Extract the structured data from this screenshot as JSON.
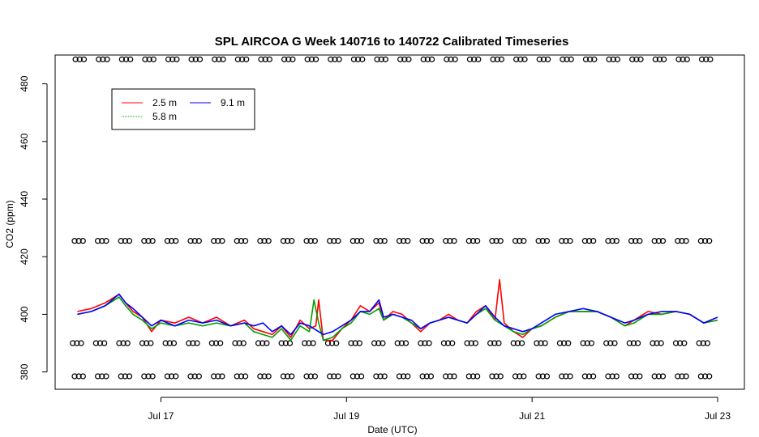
{
  "chart_data": {
    "type": "line",
    "title": "SPL AIRCOA G  Week 140716 to 140722  Calibrated Timeseries",
    "xlabel": "Date (UTC)",
    "ylabel": "CO2 (ppm)",
    "xlim": [
      16.0,
      23.0
    ],
    "ylim": [
      374,
      490
    ],
    "x_ticks": [
      {
        "value": 17,
        "label": "Jul 17"
      },
      {
        "value": 19,
        "label": "Jul 19"
      },
      {
        "value": 21,
        "label": "Jul 21"
      },
      {
        "value": 23,
        "label": "Jul 23"
      }
    ],
    "y_ticks": [
      {
        "value": 380,
        "label": "380"
      },
      {
        "value": 400,
        "label": "400"
      },
      {
        "value": 420,
        "label": "420"
      },
      {
        "value": 440,
        "label": "440"
      },
      {
        "value": 460,
        "label": "460"
      },
      {
        "value": 480,
        "label": "480"
      }
    ],
    "legend": {
      "placement": "top-left",
      "entries": [
        {
          "label": "2.5 m",
          "color": "#ff0000"
        },
        {
          "label": "5.8 m",
          "color": "#00a000"
        },
        {
          "label": "9.1 m",
          "color": "#0000ff"
        }
      ]
    },
    "series": [
      {
        "name": "2.5 m",
        "color": "#ff0000",
        "x": [
          16.1,
          16.25,
          16.4,
          16.55,
          16.62,
          16.7,
          16.8,
          16.9,
          17.0,
          17.15,
          17.3,
          17.45,
          17.6,
          17.75,
          17.9,
          18.0,
          18.1,
          18.2,
          18.3,
          18.4,
          18.5,
          18.6,
          18.67,
          18.7,
          18.75,
          18.85,
          18.95,
          19.05,
          19.15,
          19.25,
          19.35,
          19.4,
          19.5,
          19.6,
          19.7,
          19.8,
          19.9,
          20.0,
          20.1,
          20.2,
          20.3,
          20.4,
          20.5,
          20.6,
          20.65,
          20.7,
          20.8,
          20.9,
          21.0,
          21.1,
          21.25,
          21.4,
          21.55,
          21.7,
          21.85,
          22.0,
          22.1,
          22.25,
          22.4,
          22.55,
          22.7,
          22.85,
          23.0
        ],
        "y": [
          401,
          402,
          404,
          407,
          404,
          401,
          399,
          394,
          398,
          397,
          399,
          397,
          399,
          396,
          398,
          395,
          394,
          393,
          396,
          392,
          398,
          395,
          396,
          405,
          391,
          391,
          395,
          398,
          403,
          401,
          404,
          398,
          401,
          400,
          397,
          394,
          397,
          398,
          400,
          398,
          397,
          401,
          403,
          398,
          412,
          397,
          394,
          392,
          395,
          396,
          399,
          401,
          401,
          401,
          399,
          396,
          398,
          401,
          400,
          401,
          400,
          397,
          398
        ]
      },
      {
        "name": "5.8 m",
        "color": "#00a000",
        "x": [
          16.1,
          16.25,
          16.4,
          16.55,
          16.62,
          16.7,
          16.8,
          16.9,
          17.0,
          17.15,
          17.3,
          17.45,
          17.6,
          17.75,
          17.9,
          18.0,
          18.1,
          18.2,
          18.3,
          18.4,
          18.5,
          18.6,
          18.65,
          18.7,
          18.75,
          18.85,
          18.95,
          19.05,
          19.15,
          19.25,
          19.35,
          19.4,
          19.5,
          19.6,
          19.7,
          19.8,
          19.9,
          20.0,
          20.1,
          20.2,
          20.3,
          20.4,
          20.5,
          20.6,
          20.7,
          20.8,
          20.9,
          21.0,
          21.1,
          21.25,
          21.4,
          21.55,
          21.7,
          21.85,
          22.0,
          22.1,
          22.25,
          22.4,
          22.55,
          22.7,
          22.85,
          23.0
        ],
        "y": [
          400,
          401,
          403,
          406,
          403,
          400,
          398,
          395,
          397,
          396,
          397,
          396,
          397,
          396,
          397,
          394,
          393,
          392,
          395,
          391,
          396,
          394,
          405,
          397,
          391,
          392,
          395,
          397,
          401,
          400,
          402,
          398,
          400,
          399,
          397,
          395,
          397,
          398,
          399,
          398,
          397,
          400,
          402,
          398,
          396,
          394,
          393,
          395,
          396,
          399,
          401,
          401,
          401,
          399,
          396,
          397,
          400,
          400,
          401,
          400,
          397,
          398
        ]
      },
      {
        "name": "9.1 m",
        "color": "#0000ff",
        "x": [
          16.1,
          16.25,
          16.4,
          16.55,
          16.62,
          16.7,
          16.8,
          16.9,
          17.0,
          17.15,
          17.3,
          17.45,
          17.6,
          17.75,
          17.9,
          18.0,
          18.1,
          18.2,
          18.3,
          18.4,
          18.5,
          18.6,
          18.7,
          18.75,
          18.85,
          18.95,
          19.05,
          19.15,
          19.25,
          19.35,
          19.4,
          19.5,
          19.6,
          19.7,
          19.8,
          19.9,
          20.0,
          20.1,
          20.2,
          20.3,
          20.4,
          20.5,
          20.6,
          20.7,
          20.8,
          20.9,
          21.0,
          21.1,
          21.25,
          21.4,
          21.55,
          21.7,
          21.85,
          22.0,
          22.1,
          22.25,
          22.4,
          22.55,
          22.7,
          22.85,
          23.0
        ],
        "y": [
          400,
          401,
          403,
          407,
          404,
          402,
          399,
          396,
          398,
          396,
          398,
          397,
          398,
          396,
          397,
          396,
          397,
          394,
          396,
          393,
          397,
          396,
          394,
          393,
          394,
          396,
          398,
          401,
          401,
          405,
          399,
          400,
          399,
          398,
          395,
          397,
          398,
          399,
          398,
          397,
          400,
          403,
          399,
          396,
          395,
          394,
          395,
          397,
          400,
          401,
          402,
          401,
          399,
          397,
          398,
          400,
          401,
          401,
          400,
          397,
          399
        ]
      }
    ],
    "marker_rows": [
      {
        "y": 488.5,
        "symbol": "o"
      },
      {
        "y": 425.5,
        "symbol": "o"
      },
      {
        "y": 390.0,
        "symbol": "o"
      },
      {
        "y": 378.5,
        "symbol": "o"
      }
    ]
  }
}
